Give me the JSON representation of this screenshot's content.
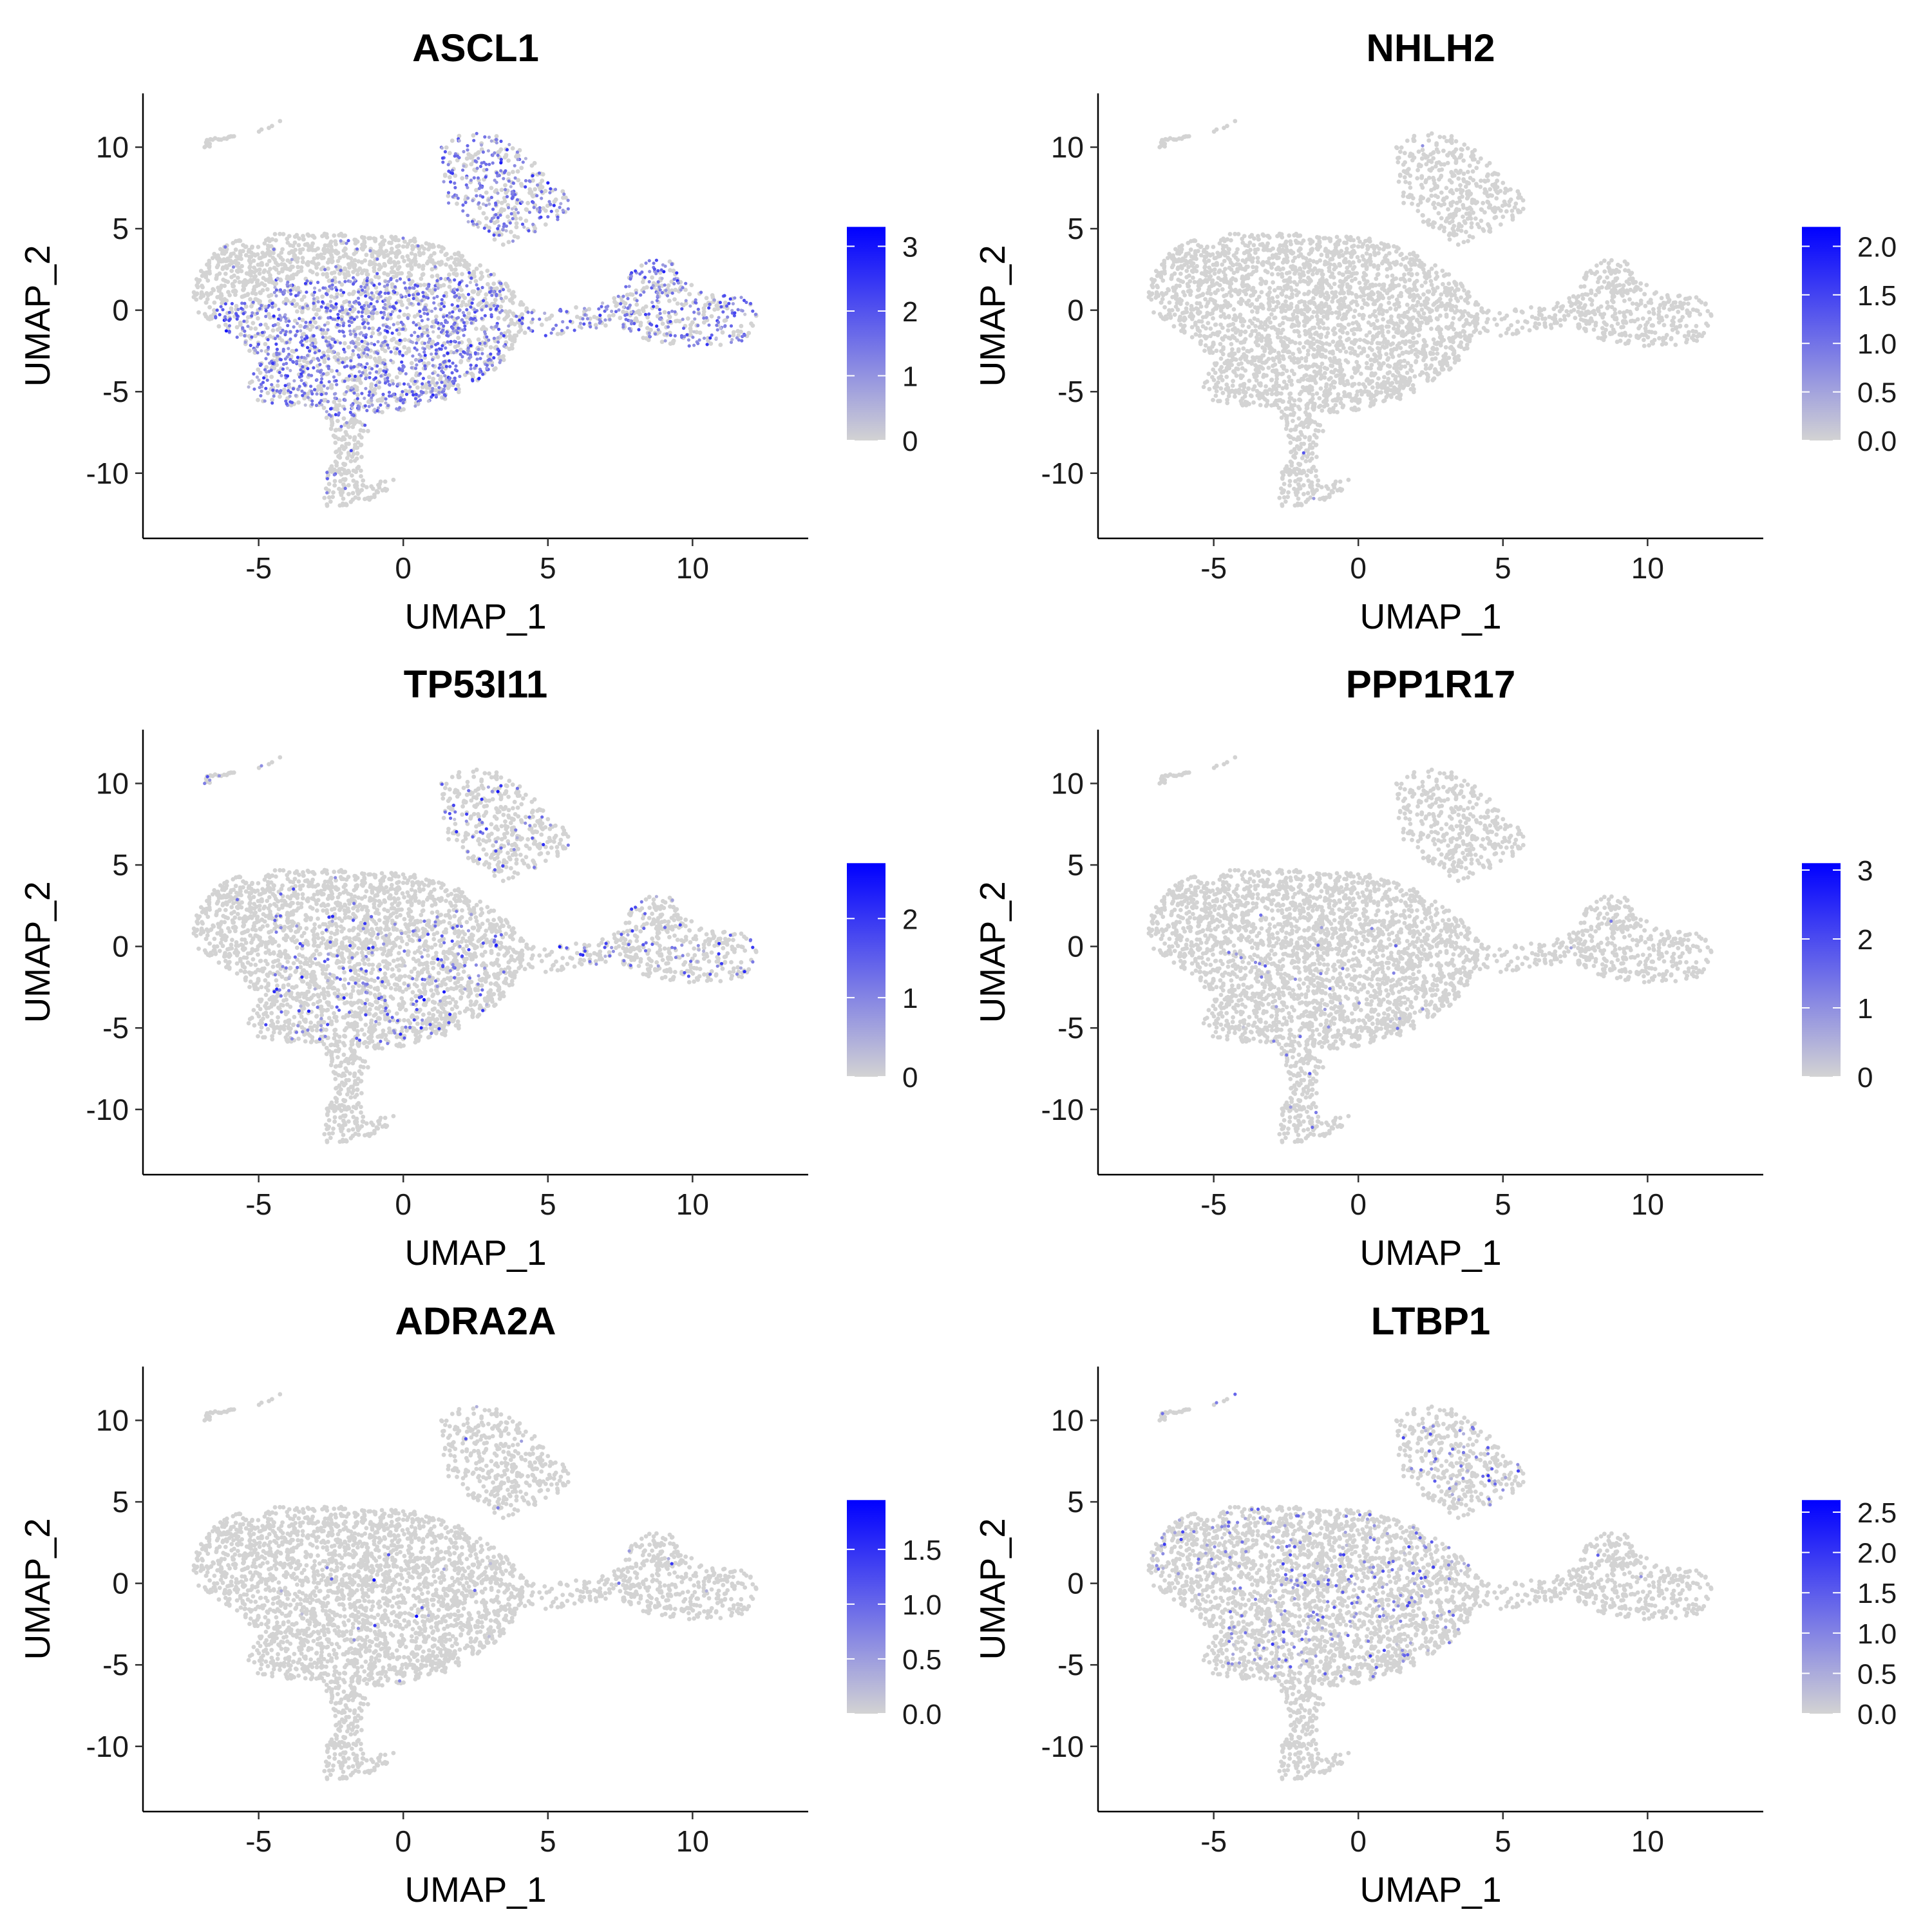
{
  "chart_data": [
    {
      "type": "scatter",
      "title": "ASCL1",
      "xlabel": "UMAP_1",
      "ylabel": "UMAP_2",
      "xlim": [
        -9,
        14
      ],
      "ylim": [
        -14,
        13.3
      ],
      "xticks": [
        -5,
        0,
        5,
        10
      ],
      "yticks": [
        -10,
        -5,
        0,
        5,
        10
      ],
      "grid": false,
      "legend": {
        "placement": "right",
        "min": 0,
        "max": 3.3,
        "ticks": [
          "0",
          "1",
          "2",
          "3"
        ],
        "tick_values": [
          0,
          1,
          2,
          3
        ],
        "low_color": "#d3d3d3",
        "high_color": "#0000ff"
      },
      "expression": {
        "regions": [
          "main-lower-left",
          "upper-island",
          "main-center",
          "right-arm"
        ],
        "fraction_expressing": 0.35,
        "typical_level": 1.4
      }
    },
    {
      "type": "scatter",
      "title": "NHLH2",
      "xlabel": "UMAP_1",
      "ylabel": "UMAP_2",
      "xlim": [
        -9,
        14
      ],
      "ylim": [
        -14,
        13.3
      ],
      "xticks": [
        -5,
        0,
        5,
        10
      ],
      "yticks": [
        -10,
        -5,
        0,
        5,
        10
      ],
      "grid": false,
      "legend": {
        "placement": "right",
        "min": 0,
        "max": 2.2,
        "ticks": [
          "0.0",
          "0.5",
          "1.0",
          "1.5",
          "2.0"
        ],
        "tick_values": [
          0,
          0.5,
          1,
          1.5,
          2
        ],
        "low_color": "#d3d3d3",
        "high_color": "#0000ff"
      },
      "expression": {
        "regions": [
          "stem"
        ],
        "fraction_expressing": 0.01,
        "typical_level": 1.0
      }
    },
    {
      "type": "scatter",
      "title": "TP53I11",
      "xlabel": "UMAP_1",
      "ylabel": "UMAP_2",
      "xlim": [
        -9,
        14
      ],
      "ylim": [
        -14,
        13.3
      ],
      "xticks": [
        -5,
        0,
        5,
        10
      ],
      "yticks": [
        -10,
        -5,
        0,
        5,
        10
      ],
      "grid": false,
      "legend": {
        "placement": "right",
        "min": 0,
        "max": 2.7,
        "ticks": [
          "0",
          "1",
          "2"
        ],
        "tick_values": [
          0,
          1,
          2
        ],
        "low_color": "#d3d3d3",
        "high_color": "#0000ff"
      },
      "expression": {
        "regions": [
          "upper-island",
          "right-arm",
          "main-center",
          "top-streak"
        ],
        "fraction_expressing": 0.06,
        "typical_level": 1.3
      }
    },
    {
      "type": "scatter",
      "title": "PPP1R17",
      "xlabel": "UMAP_1",
      "ylabel": "UMAP_2",
      "xlim": [
        -9,
        14
      ],
      "ylim": [
        -14,
        13.3
      ],
      "xticks": [
        -5,
        0,
        5,
        10
      ],
      "yticks": [
        -10,
        -5,
        0,
        5,
        10
      ],
      "grid": false,
      "legend": {
        "placement": "right",
        "min": 0,
        "max": 3.1,
        "ticks": [
          "0",
          "1",
          "2",
          "3"
        ],
        "tick_values": [
          0,
          1,
          2,
          3
        ],
        "low_color": "#d3d3d3",
        "high_color": "#0000ff"
      },
      "expression": {
        "regions": [
          "main-center",
          "stem"
        ],
        "fraction_expressing": 0.012,
        "typical_level": 1.2
      }
    },
    {
      "type": "scatter",
      "title": "ADRA2A",
      "xlabel": "UMAP_1",
      "ylabel": "UMAP_2",
      "xlim": [
        -9,
        14
      ],
      "ylim": [
        -14,
        13.3
      ],
      "xticks": [
        -5,
        0,
        5,
        10
      ],
      "yticks": [
        -10,
        -5,
        0,
        5,
        10
      ],
      "grid": false,
      "legend": {
        "placement": "right",
        "min": 0,
        "max": 1.95,
        "ticks": [
          "0.0",
          "0.5",
          "1.0",
          "1.5"
        ],
        "tick_values": [
          0,
          0.5,
          1,
          1.5
        ],
        "low_color": "#d3d3d3",
        "high_color": "#0000ff"
      },
      "expression": {
        "regions": [
          "main-center",
          "right-arm",
          "upper-island"
        ],
        "fraction_expressing": 0.008,
        "typical_level": 1.0
      }
    },
    {
      "type": "scatter",
      "title": "LTBP1",
      "xlabel": "UMAP_1",
      "ylabel": "UMAP_2",
      "xlim": [
        -9,
        14
      ],
      "ylim": [
        -14,
        13.3
      ],
      "xticks": [
        -5,
        0,
        5,
        10
      ],
      "yticks": [
        -10,
        -5,
        0,
        5,
        10
      ],
      "grid": false,
      "legend": {
        "placement": "right",
        "min": 0,
        "max": 2.65,
        "ticks": [
          "0.0",
          "0.5",
          "1.0",
          "1.5",
          "2.0",
          "2.5"
        ],
        "tick_values": [
          0,
          0.5,
          1,
          1.5,
          2,
          2.5
        ],
        "low_color": "#d3d3d3",
        "high_color": "#0000ff"
      },
      "expression": {
        "regions": [
          "main-top",
          "main-center",
          "upper-island",
          "top-streak"
        ],
        "fraction_expressing": 0.06,
        "typical_level": 1.0
      }
    }
  ]
}
